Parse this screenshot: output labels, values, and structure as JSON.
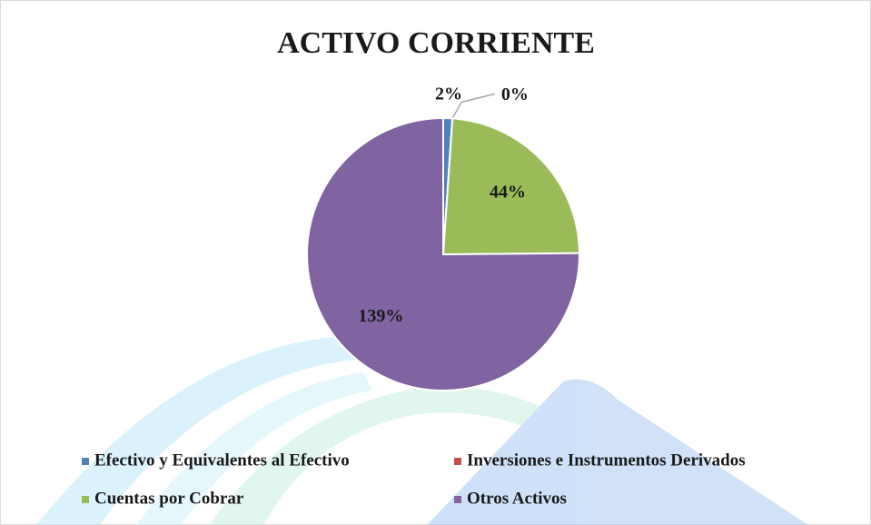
{
  "chart_data": {
    "type": "pie",
    "title": "ACTIVO  CORRIENTE",
    "categories": [
      "Efectivo y Equivalentes al Efectivo",
      "Inversiones e Instrumentos Derivados",
      "Cuentas por Cobrar",
      "Otros Activos"
    ],
    "values": [
      2,
      0,
      44,
      139
    ],
    "value_labels": [
      "2%",
      "0%",
      "44%",
      "139%"
    ],
    "colors": [
      "#4f81bd",
      "#c0504d",
      "#9bbb59",
      "#8064a2"
    ]
  }
}
